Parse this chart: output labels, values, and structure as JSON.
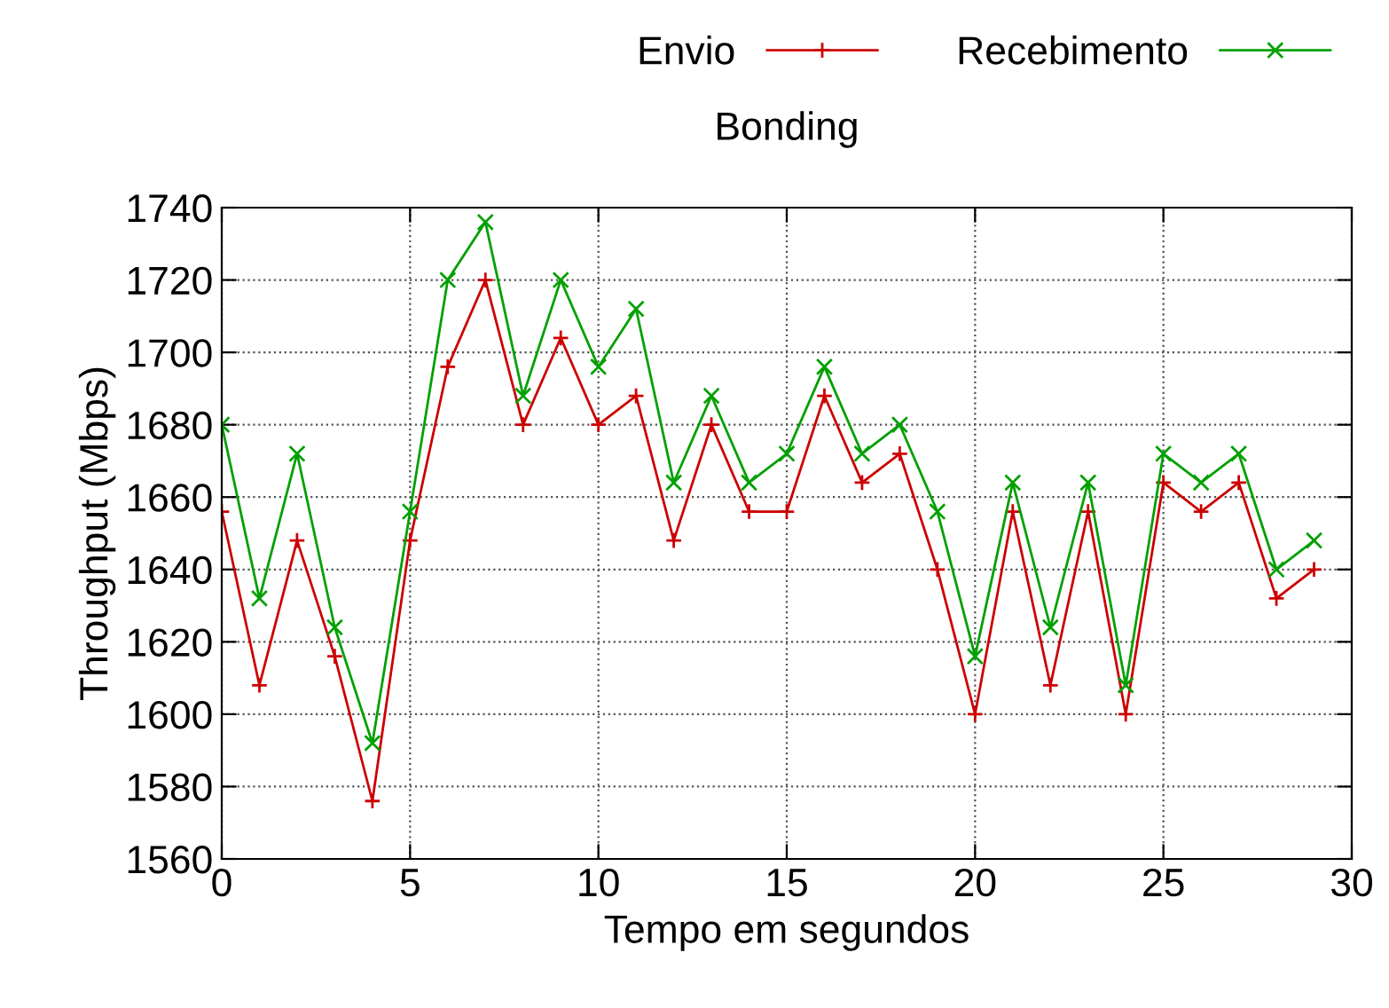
{
  "chart_data": {
    "type": "line",
    "title": "Bonding",
    "xlabel": "Tempo em segundos",
    "ylabel": "Throughput (Mbps)",
    "x": [
      0,
      1,
      2,
      3,
      4,
      5,
      6,
      7,
      8,
      9,
      10,
      11,
      12,
      13,
      14,
      15,
      16,
      17,
      18,
      19,
      20,
      21,
      22,
      23,
      24,
      25,
      26,
      27,
      28,
      29
    ],
    "series": [
      {
        "name": "Envio",
        "color": "#cc0000",
        "marker": "plus",
        "values": [
          1656,
          1608,
          1648,
          1616,
          1576,
          1648,
          1696,
          1720,
          1680,
          1704,
          1680,
          1688,
          1648,
          1680,
          1656,
          1656,
          1688,
          1664,
          1672,
          1640,
          1600,
          1656,
          1608,
          1656,
          1600,
          1664,
          1656,
          1664,
          1632,
          1640
        ]
      },
      {
        "name": "Recebimento",
        "color": "#00a000",
        "marker": "cross",
        "values": [
          1680,
          1632,
          1672,
          1624,
          1592,
          1656,
          1720,
          1736,
          1688,
          1720,
          1696,
          1712,
          1664,
          1688,
          1664,
          1672,
          1696,
          1672,
          1680,
          1656,
          1616,
          1664,
          1624,
          1664,
          1608,
          1672,
          1664,
          1672,
          1640,
          1648
        ]
      }
    ],
    "xlim": [
      0,
      30
    ],
    "xticks": [
      0,
      5,
      10,
      15,
      20,
      25,
      30
    ],
    "ylim": [
      1560,
      1740
    ],
    "yticks": [
      1560,
      1580,
      1600,
      1620,
      1640,
      1660,
      1680,
      1700,
      1720,
      1740
    ],
    "grid": true,
    "legend": "top right",
    "line_style": "solid"
  }
}
